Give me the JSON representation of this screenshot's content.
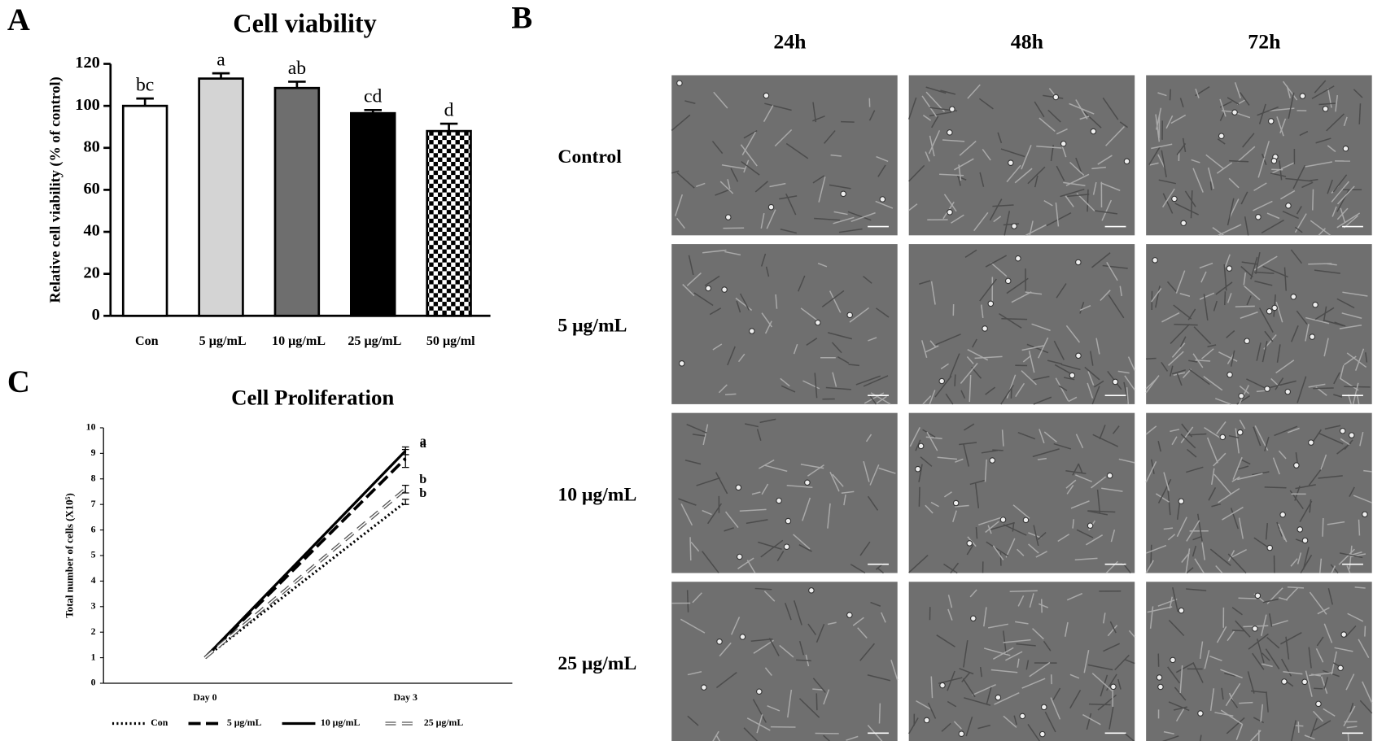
{
  "panel_labels": [
    "A",
    "B",
    "C"
  ],
  "chart_data": [
    {
      "type": "bar",
      "title": "Cell viability",
      "ylabel": "Relative cell viability (% of control)",
      "categories": [
        "Con",
        "5 μg/mL",
        "10 μg/mL",
        "25 μg/mL",
        "50 μg/ml"
      ],
      "values": [
        100,
        113,
        108.5,
        96.5,
        88
      ],
      "errors": [
        3.5,
        2.5,
        3,
        1.5,
        3.5
      ],
      "annotations": [
        "bc",
        "a",
        "ab",
        "cd",
        "d"
      ],
      "colors": [
        "#ffffff",
        "#d4d4d4",
        "#6e6e6e",
        "#000000",
        "checkerboard"
      ],
      "ylim": [
        0,
        120
      ],
      "yticks": [
        0,
        20,
        40,
        60,
        80,
        100,
        120
      ]
    },
    {
      "type": "line",
      "title": "Cell Proliferation",
      "ylabel": "Total number of cells (X10⁵)",
      "categories": [
        "Day 0",
        "Day 3"
      ],
      "ylim": [
        0,
        10
      ],
      "yticks": [
        0,
        1,
        2,
        3,
        4,
        5,
        6,
        7,
        8,
        9,
        10
      ],
      "series": [
        {
          "name": "Con",
          "style": "dotted",
          "color": "#000000",
          "values": [
            1,
            7.1
          ],
          "errors": [
            null,
            0.1
          ],
          "annotation": "b"
        },
        {
          "name": "5 μg/mL",
          "style": "dashed",
          "color": "#000000",
          "values": [
            1,
            8.8
          ],
          "errors": [
            null,
            0.35
          ],
          "annotation": "a"
        },
        {
          "name": "10 μg/mL",
          "style": "solid",
          "color": "#000000",
          "values": [
            1,
            9.1
          ],
          "errors": [
            null,
            0.15
          ],
          "annotation": "a"
        },
        {
          "name": "25 μg/mL",
          "style": "outline-dashed",
          "color": "#555555",
          "values": [
            1,
            7.6
          ],
          "errors": [
            null,
            0.15
          ],
          "annotation": "b"
        }
      ]
    }
  ],
  "micrographs": {
    "columns": [
      "24h",
      "48h",
      "72h"
    ],
    "rows": [
      "Control",
      "5 μg/mL",
      "10 μg/mL",
      "25 μg/mL"
    ]
  }
}
